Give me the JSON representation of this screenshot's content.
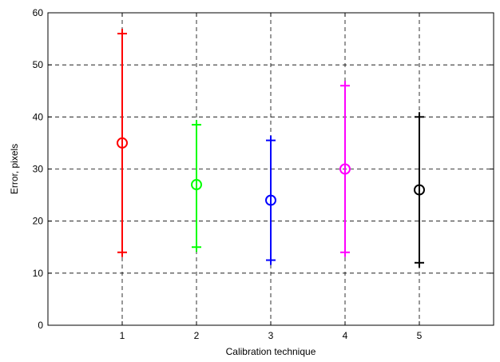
{
  "chart_data": {
    "type": "errorbar",
    "xlabel": "Calibration technique",
    "ylabel": "Error, pixels",
    "xlim": [
      0,
      6
    ],
    "ylim": [
      0,
      60
    ],
    "xticks": [
      "1",
      "2",
      "3",
      "4",
      "5"
    ],
    "yticks": [
      "0",
      "10",
      "20",
      "30",
      "40",
      "50",
      "60"
    ],
    "grid": true,
    "points": [
      {
        "x": 1,
        "mean": 35,
        "low": 14,
        "high": 56,
        "color": "#ff0000"
      },
      {
        "x": 2,
        "mean": 27,
        "low": 15,
        "high": 38.5,
        "color": "#00ff00"
      },
      {
        "x": 3,
        "mean": 24,
        "low": 12.5,
        "high": 35.5,
        "color": "#0000ff"
      },
      {
        "x": 4,
        "mean": 30,
        "low": 14,
        "high": 46,
        "color": "#ff00ff"
      },
      {
        "x": 5,
        "mean": 26,
        "low": 12,
        "high": 40,
        "color": "#000000"
      }
    ]
  }
}
